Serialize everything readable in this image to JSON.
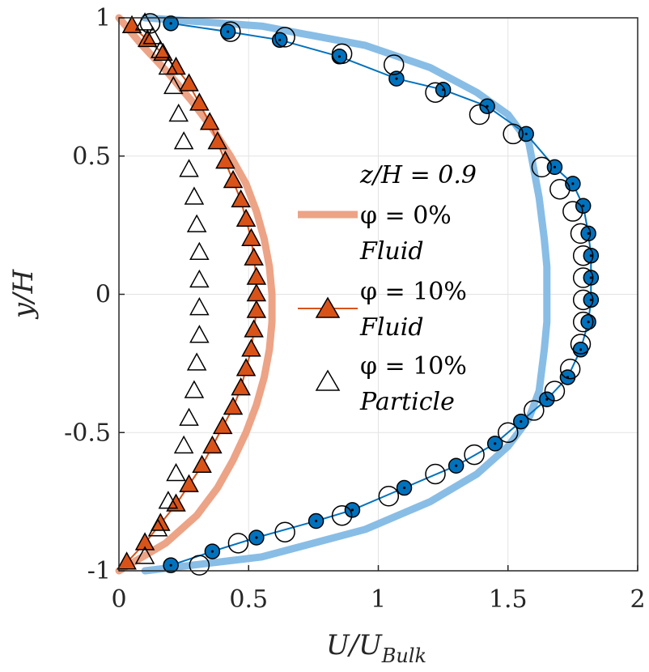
{
  "chart_data": {
    "type": "line",
    "xlabel": "U/U_Bulk",
    "xlabel_main": "U/U",
    "xlabel_sub": "Bulk",
    "ylabel": "y/H",
    "xlim": [
      0,
      2
    ],
    "ylim": [
      -1,
      1
    ],
    "xticks": [
      "0",
      "0.5",
      "1",
      "1.5",
      "2"
    ],
    "yticks": [
      "-1",
      "-0.5",
      "0",
      "0.5",
      "1"
    ],
    "grid": true,
    "legend_position": "center-right",
    "legend_lines": [
      "z/H = 0.9",
      "φ = 0%",
      "Fluid",
      "φ = 10%",
      "Fluid",
      "φ = 10%",
      "Particle"
    ],
    "colors": {
      "orange_fluid_0": "#eda386",
      "orange_fluid_10": "#d95319",
      "blue_fluid_0": "#88bde6",
      "blue_fluid_10": "#0072bd",
      "grid": "#e3e3e3",
      "axis": "#262626"
    },
    "series": [
      {
        "name": "φ = 0% Fluid",
        "group": "orange",
        "style": "thick-line",
        "x": [
          0.0,
          0.18,
          0.3,
          0.38,
          0.44,
          0.49,
          0.53,
          0.56,
          0.58,
          0.59,
          0.59,
          0.58,
          0.56,
          0.53,
          0.49,
          0.43,
          0.36,
          0.28,
          0.19,
          0.09,
          0.0
        ],
        "y": [
          -1.0,
          -0.9,
          -0.8,
          -0.7,
          -0.6,
          -0.5,
          -0.4,
          -0.3,
          -0.2,
          -0.1,
          0.0,
          0.1,
          0.2,
          0.3,
          0.4,
          0.5,
          0.6,
          0.7,
          0.8,
          0.9,
          1.0
        ]
      },
      {
        "name": "φ = 10% Fluid",
        "group": "orange",
        "style": "line-triangle-filled",
        "x": [
          0.03,
          0.1,
          0.16,
          0.22,
          0.27,
          0.32,
          0.36,
          0.4,
          0.44,
          0.47,
          0.49,
          0.51,
          0.52,
          0.53,
          0.53,
          0.53,
          0.52,
          0.51,
          0.49,
          0.47,
          0.44,
          0.41,
          0.38,
          0.35,
          0.31,
          0.27,
          0.22,
          0.17,
          0.11,
          0.05
        ],
        "y": [
          -0.97,
          -0.9,
          -0.83,
          -0.76,
          -0.69,
          -0.62,
          -0.55,
          -0.48,
          -0.41,
          -0.34,
          -0.27,
          -0.2,
          -0.13,
          -0.06,
          0.0,
          0.06,
          0.13,
          0.2,
          0.27,
          0.34,
          0.41,
          0.48,
          0.55,
          0.62,
          0.69,
          0.76,
          0.82,
          0.87,
          0.92,
          0.97
        ]
      },
      {
        "name": "φ = 10% Particle",
        "group": "orange",
        "style": "triangle-open",
        "x": [
          0.1,
          0.15,
          0.19,
          0.22,
          0.25,
          0.27,
          0.29,
          0.3,
          0.31,
          0.31,
          0.31,
          0.31,
          0.3,
          0.29,
          0.27,
          0.25,
          0.23,
          0.21,
          0.19,
          0.16,
          0.13,
          0.1
        ],
        "y": [
          -0.95,
          -0.85,
          -0.75,
          -0.65,
          -0.55,
          -0.45,
          -0.35,
          -0.25,
          -0.15,
          -0.05,
          0.05,
          0.15,
          0.25,
          0.35,
          0.45,
          0.55,
          0.65,
          0.75,
          0.82,
          0.88,
          0.93,
          0.98
        ]
      },
      {
        "name": "φ = 0% Fluid (blue)",
        "group": "blue",
        "style": "thick-line",
        "x": [
          0.1,
          0.55,
          0.95,
          1.2,
          1.38,
          1.5,
          1.58,
          1.62,
          1.64,
          1.65,
          1.65,
          1.65,
          1.64,
          1.62,
          1.58,
          1.5,
          1.38,
          1.2,
          0.95,
          0.55,
          0.1
        ],
        "y": [
          -1.0,
          -0.95,
          -0.85,
          -0.75,
          -0.65,
          -0.55,
          -0.45,
          -0.35,
          -0.2,
          -0.1,
          0.0,
          0.1,
          0.2,
          0.35,
          0.55,
          0.65,
          0.73,
          0.82,
          0.9,
          0.97,
          1.0
        ]
      },
      {
        "name": "φ = 10% Fluid (blue)",
        "group": "blue",
        "style": "line-circle-filled",
        "x": [
          0.2,
          0.36,
          0.53,
          0.76,
          0.9,
          1.1,
          1.3,
          1.45,
          1.55,
          1.65,
          1.73,
          1.78,
          1.81,
          1.82,
          1.82,
          1.82,
          1.81,
          1.79,
          1.75,
          1.68,
          1.57,
          1.42,
          1.25,
          1.07,
          0.85,
          0.62,
          0.42,
          0.2
        ],
        "y": [
          -0.98,
          -0.93,
          -0.88,
          -0.82,
          -0.78,
          -0.7,
          -0.62,
          -0.54,
          -0.46,
          -0.38,
          -0.3,
          -0.2,
          -0.1,
          -0.02,
          0.06,
          0.14,
          0.22,
          0.32,
          0.4,
          0.46,
          0.58,
          0.68,
          0.74,
          0.78,
          0.86,
          0.92,
          0.95,
          0.98
        ]
      },
      {
        "name": "φ = 10% Particle (blue)",
        "group": "blue",
        "style": "circle-open",
        "x": [
          0.31,
          0.46,
          0.64,
          0.86,
          1.04,
          1.22,
          1.37,
          1.5,
          1.6,
          1.68,
          1.74,
          1.78,
          1.79,
          1.79,
          1.79,
          1.79,
          1.78,
          1.75,
          1.7,
          1.63,
          1.52,
          1.39,
          1.22,
          1.06,
          0.86,
          0.64,
          0.43,
          0.12
        ],
        "y": [
          -0.98,
          -0.9,
          -0.86,
          -0.8,
          -0.73,
          -0.65,
          -0.58,
          -0.5,
          -0.42,
          -0.35,
          -0.27,
          -0.18,
          -0.1,
          -0.02,
          0.06,
          0.14,
          0.22,
          0.3,
          0.38,
          0.46,
          0.58,
          0.65,
          0.73,
          0.83,
          0.87,
          0.93,
          0.95,
          0.98
        ]
      }
    ]
  }
}
